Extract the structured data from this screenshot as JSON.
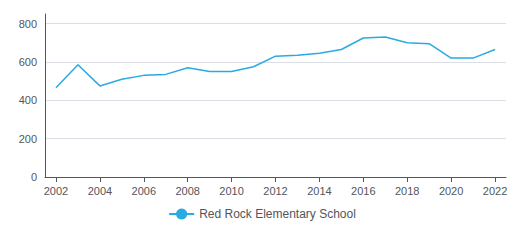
{
  "chart_data": {
    "type": "line",
    "x": [
      2002,
      2003,
      2004,
      2005,
      2006,
      2007,
      2008,
      2009,
      2010,
      2011,
      2012,
      2013,
      2014,
      2015,
      2016,
      2017,
      2018,
      2019,
      2020,
      2021,
      2022
    ],
    "series": [
      {
        "name": "Red Rock Elementary School",
        "color": "#29ABE2",
        "values": [
          465,
          585,
          475,
          510,
          530,
          535,
          570,
          550,
          550,
          575,
          630,
          635,
          645,
          665,
          725,
          730,
          700,
          695,
          620,
          620,
          665
        ]
      }
    ],
    "xlim": [
      2001.5,
      2022.5
    ],
    "xticks": [
      2002,
      2004,
      2006,
      2008,
      2010,
      2012,
      2014,
      2016,
      2018,
      2020,
      2022
    ],
    "ylim": [
      0,
      850
    ],
    "yticks": [
      0,
      200,
      400,
      600,
      800
    ],
    "grid": true,
    "legend": "bottom"
  }
}
